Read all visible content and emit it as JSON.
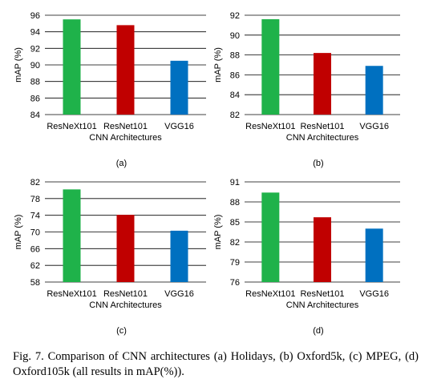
{
  "chart_data": [
    {
      "type": "bar",
      "panel_label": "(a)",
      "categories": [
        "ResNeXt101",
        "ResNet101",
        "VGG16"
      ],
      "values": [
        95.5,
        94.8,
        90.5
      ],
      "ylabel": "mAP (%)",
      "xlabel": "CNN Architectures",
      "ylim": [
        84,
        96
      ],
      "yticks": [
        "84",
        "86",
        "88",
        "90",
        "92",
        "94",
        "96"
      ],
      "grid": true,
      "colors": [
        "#1fb24a",
        "#c00000",
        "#0070c0"
      ]
    },
    {
      "type": "bar",
      "panel_label": "(b)",
      "categories": [
        "ResNeXt101",
        "ResNet101",
        "VGG16"
      ],
      "values": [
        91.6,
        88.2,
        86.9
      ],
      "ylabel": "mAP (%)",
      "xlabel": "CNN Architectures",
      "ylim": [
        82,
        92
      ],
      "yticks": [
        "82",
        "84",
        "86",
        "88",
        "90",
        "92"
      ],
      "grid": true,
      "colors": [
        "#1fb24a",
        "#c00000",
        "#0070c0"
      ]
    },
    {
      "type": "bar",
      "panel_label": "(c)",
      "categories": [
        "ResNeXt101",
        "ResNet101",
        "VGG16"
      ],
      "values": [
        80.2,
        74.1,
        70.3
      ],
      "ylabel": "mAP (%)",
      "xlabel": "CNN Architectures",
      "ylim": [
        58,
        82
      ],
      "yticks": [
        "58",
        "62",
        "66",
        "70",
        "74",
        "78",
        "82"
      ],
      "grid": true,
      "colors": [
        "#1fb24a",
        "#c00000",
        "#0070c0"
      ]
    },
    {
      "type": "bar",
      "panel_label": "(d)",
      "categories": [
        "ResNeXt101",
        "ResNet101",
        "VGG16"
      ],
      "values": [
        89.4,
        85.7,
        84.0
      ],
      "ylabel": "mAP (%)",
      "xlabel": "CNN Architectures",
      "ylim": [
        76,
        91
      ],
      "yticks": [
        "76",
        "79",
        "82",
        "85",
        "88",
        "91"
      ],
      "grid": true,
      "colors": [
        "#1fb24a",
        "#c00000",
        "#0070c0"
      ]
    }
  ],
  "caption": "Fig. 7.   Comparison of CNN architectures (a) Holidays, (b) Oxford5k, (c) MPEG, (d) Oxford105k (all results in mAP(%))."
}
